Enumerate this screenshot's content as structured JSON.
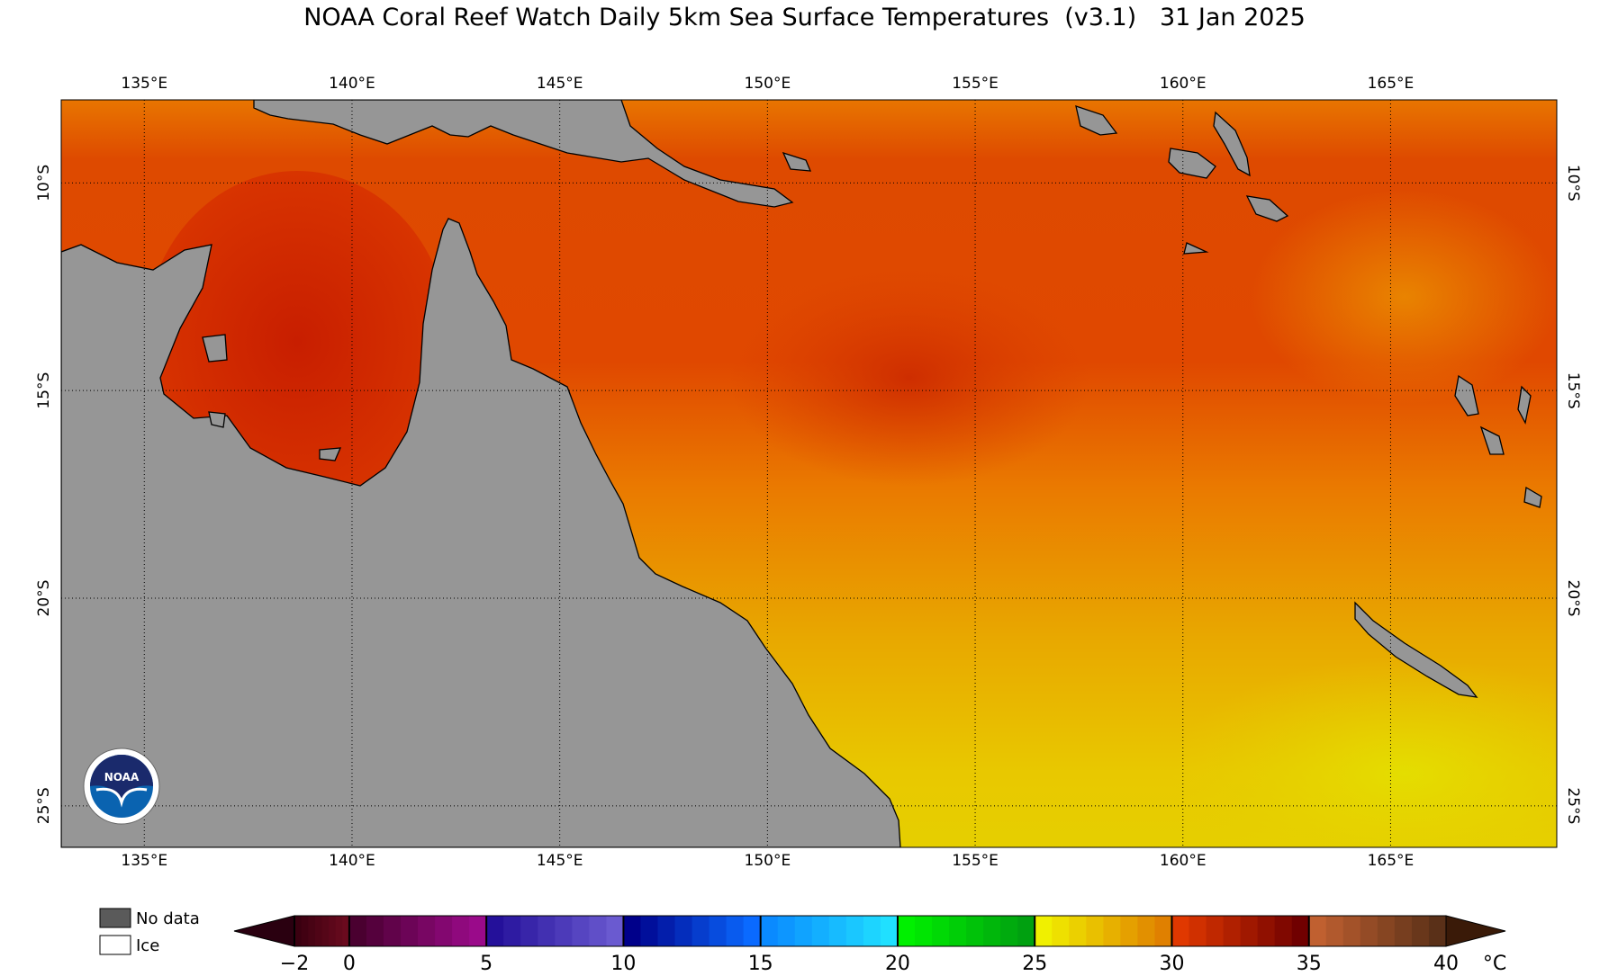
{
  "title": "NOAA Coral Reef Watch Daily 5km Sea Surface Temperatures  (v3.1)   31 Jan 2025",
  "map": {
    "lon_range": [
      133,
      169
    ],
    "lat_range": [
      -26,
      -8
    ],
    "lon_ticks": [
      {
        "value": 135,
        "label": "135°E"
      },
      {
        "value": 140,
        "label": "140°E"
      },
      {
        "value": 145,
        "label": "145°E"
      },
      {
        "value": 150,
        "label": "150°E"
      },
      {
        "value": 155,
        "label": "155°E"
      },
      {
        "value": 160,
        "label": "160°E"
      },
      {
        "value": 165,
        "label": "165°E"
      }
    ],
    "lat_ticks": [
      {
        "value": -10,
        "label": "10°S"
      },
      {
        "value": -15,
        "label": "15°S"
      },
      {
        "value": -20,
        "label": "20°S"
      },
      {
        "value": -25,
        "label": "25°S"
      }
    ],
    "land_color": "#969696",
    "grid": "dotted"
  },
  "legend": {
    "no_data_label": "No data",
    "ice_label": "Ice"
  },
  "colorbar": {
    "unit": "°C",
    "labels": [
      {
        "value": -2,
        "text": "−2"
      },
      {
        "value": 0,
        "text": "0"
      },
      {
        "value": 5,
        "text": "5"
      },
      {
        "value": 10,
        "text": "10"
      },
      {
        "value": 15,
        "text": "15"
      },
      {
        "value": 20,
        "text": "20"
      },
      {
        "value": 25,
        "text": "25"
      },
      {
        "value": 30,
        "text": "30"
      },
      {
        "value": 35,
        "text": "35"
      },
      {
        "value": 40,
        "text": "40"
      }
    ],
    "segments": [
      {
        "from": -2,
        "to": 0,
        "colors": [
          "#3a0010",
          "#6a0a1e"
        ]
      },
      {
        "from": 0,
        "to": 5,
        "colors": [
          "#4a0030",
          "#9a0a8a"
        ]
      },
      {
        "from": 5,
        "to": 10,
        "colors": [
          "#24109a",
          "#6a5ad0"
        ]
      },
      {
        "from": 10,
        "to": 15,
        "colors": [
          "#00008a",
          "#0a6aff"
        ]
      },
      {
        "from": 15,
        "to": 20,
        "colors": [
          "#0a8aff",
          "#20e0ff"
        ]
      },
      {
        "from": 20,
        "to": 25,
        "colors": [
          "#00f000",
          "#00a010"
        ]
      },
      {
        "from": 25,
        "to": 30,
        "colors": [
          "#f0f000",
          "#e08000"
        ]
      },
      {
        "from": 30,
        "to": 35,
        "colors": [
          "#e03800",
          "#700000"
        ]
      },
      {
        "from": 35,
        "to": 40,
        "colors": [
          "#c06030",
          "#5a3018"
        ]
      }
    ],
    "under_color": "#2a0010",
    "over_color": "#3a1a08"
  },
  "logo": {
    "text": "NOAA"
  }
}
